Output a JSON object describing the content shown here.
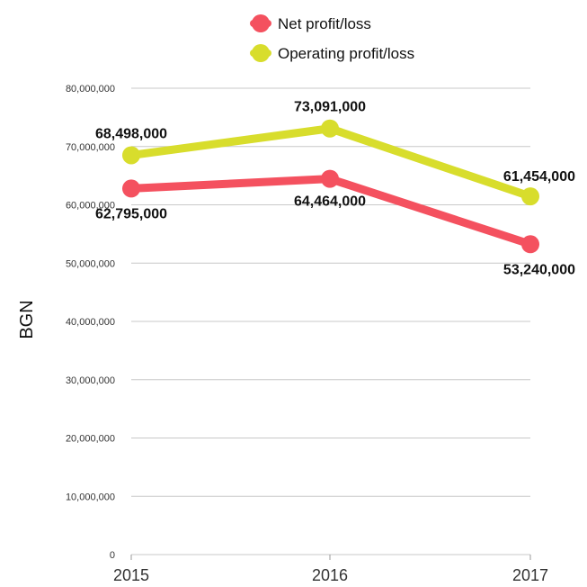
{
  "chart_data": {
    "type": "line",
    "categories": [
      "2015",
      "2016",
      "2017"
    ],
    "series": [
      {
        "name": "Net profit/loss",
        "color": "#f4515f",
        "values": [
          62795000,
          64464000,
          53240000
        ],
        "labels": [
          "62,795,000",
          "64,464,000",
          "53,240,000"
        ]
      },
      {
        "name": "Operating profit/loss",
        "color": "#d8dd2c",
        "values": [
          68498000,
          73091000,
          61454000
        ],
        "labels": [
          "68,498,000",
          "73,091,000",
          "61,454,000"
        ]
      }
    ],
    "ylabel": "BGN",
    "ylim": [
      0,
      80000000
    ],
    "yticks": [
      {
        "value": 0,
        "label": "0"
      },
      {
        "value": 10000000,
        "label": "10,000,000"
      },
      {
        "value": 20000000,
        "label": "20,000,000"
      },
      {
        "value": 30000000,
        "label": "30,000,000"
      },
      {
        "value": 40000000,
        "label": "40,000,000"
      },
      {
        "value": 50000000,
        "label": "50,000,000"
      },
      {
        "value": 60000000,
        "label": "60,000,000"
      },
      {
        "value": 70000000,
        "label": "70,000,000"
      },
      {
        "value": 80000000,
        "label": "80,000,000"
      }
    ],
    "grid": true,
    "legend_position": "top-center"
  }
}
